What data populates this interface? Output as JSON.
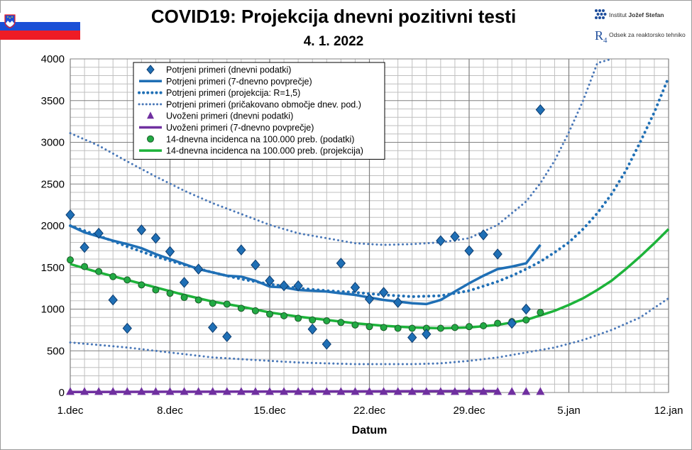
{
  "header": {
    "title": "COVID19: Projekcija dnevni pozitivni testi",
    "date": "4. 1. 2022",
    "institute_line1_a": "Institut ",
    "institute_line1_b": "Jožef Stefan",
    "institute_line2": "Odsek za reaktorsko tehniko",
    "institute_mark": "R",
    "institute_mark_sub": "4",
    "flag_icon": "slovenia-flag-icon",
    "logo_icon": "ijs-logo-icon"
  },
  "colors": {
    "blue_dark": "#1f6fb5",
    "blue_light": "#4a78b8",
    "purple": "#7030a0",
    "green": "#1db33a",
    "green_marker": "#22aa44",
    "grid": "#bfbfbf",
    "grid_major": "#808080"
  },
  "chart_data": {
    "type": "line",
    "title": "COVID19: Projekcija dnevni pozitivni testi",
    "subtitle": "4. 1. 2022",
    "xlabel": "Datum",
    "ylabel": "",
    "x_unit": "day index (0 = 1.dec)",
    "xlim": [
      0,
      42
    ],
    "ylim": [
      0,
      4000
    ],
    "yticks": [
      0,
      500,
      1000,
      1500,
      2000,
      2500,
      3000,
      3500,
      4000
    ],
    "xticks": [
      {
        "x": 0,
        "label": "1.dec"
      },
      {
        "x": 7,
        "label": "8.dec"
      },
      {
        "x": 14,
        "label": "15.dec"
      },
      {
        "x": 21,
        "label": "22.dec"
      },
      {
        "x": 28,
        "label": "29.dec"
      },
      {
        "x": 35,
        "label": "5.jan"
      },
      {
        "x": 42,
        "label": "12.jan"
      }
    ],
    "grid": true,
    "legend_position": "top-left",
    "series": [
      {
        "name": "Potrjeni primeri (dnevni podatki)",
        "style": "diamond",
        "x": [
          0,
          1,
          2,
          3,
          4,
          5,
          6,
          7,
          8,
          9,
          10,
          11,
          12,
          13,
          14,
          15,
          16,
          17,
          18,
          19,
          20,
          21,
          22,
          23,
          24,
          25,
          26,
          27,
          28,
          29,
          30,
          31,
          32,
          33
        ],
        "y": [
          2130,
          1740,
          1910,
          1110,
          770,
          1950,
          1850,
          1690,
          1320,
          1480,
          780,
          670,
          1710,
          1530,
          1340,
          1280,
          1280,
          760,
          580,
          1550,
          1260,
          1120,
          1200,
          1080,
          660,
          700,
          1820,
          1870,
          1700,
          1890,
          1660,
          830,
          1000,
          3390
        ]
      },
      {
        "name": "Potrjeni primeri (7-dnevno povprečje)",
        "style": "solid-blue",
        "x": [
          0,
          1,
          2,
          3,
          4,
          5,
          6,
          7,
          8,
          9,
          10,
          11,
          12,
          13,
          14,
          15,
          16,
          17,
          18,
          19,
          20,
          21,
          22,
          23,
          24,
          25,
          26,
          27,
          28,
          29,
          30,
          31,
          32,
          33
        ],
        "y": [
          2000,
          1920,
          1870,
          1820,
          1780,
          1730,
          1660,
          1600,
          1540,
          1480,
          1440,
          1400,
          1390,
          1340,
          1270,
          1260,
          1230,
          1220,
          1210,
          1190,
          1170,
          1140,
          1110,
          1090,
          1070,
          1060,
          1110,
          1210,
          1310,
          1400,
          1480,
          1510,
          1550,
          1770
        ]
      },
      {
        "name": "Potrjeni primeri (projekcija: R=1,5)",
        "style": "dotted-blue",
        "x": [
          0,
          2,
          4,
          6,
          8,
          10,
          12,
          14,
          16,
          18,
          20,
          22,
          24,
          26,
          28,
          30,
          31,
          32,
          33,
          34,
          35,
          36,
          37,
          38,
          39,
          40,
          41,
          42
        ],
        "y": [
          2000,
          1880,
          1750,
          1630,
          1530,
          1440,
          1360,
          1300,
          1250,
          1220,
          1200,
          1170,
          1150,
          1160,
          1220,
          1330,
          1400,
          1480,
          1570,
          1680,
          1800,
          1960,
          2150,
          2380,
          2660,
          3000,
          3360,
          3780
        ]
      },
      {
        "name": "Potrjeni primeri (pričakovano območje dnev. pod.)",
        "style": "dotted-light-blue",
        "upper": {
          "x": [
            0,
            2,
            4,
            6,
            8,
            10,
            12,
            14,
            16,
            18,
            20,
            22,
            24,
            26,
            28,
            30,
            32,
            33,
            34,
            35,
            36,
            37,
            38
          ],
          "y": [
            3110,
            2960,
            2770,
            2590,
            2420,
            2270,
            2140,
            2010,
            1910,
            1850,
            1790,
            1770,
            1780,
            1800,
            1850,
            2010,
            2290,
            2510,
            2780,
            3120,
            3500,
            3950,
            4000
          ]
        },
        "lower": {
          "x": [
            0,
            2,
            4,
            6,
            8,
            10,
            12,
            14,
            16,
            18,
            20,
            22,
            24,
            26,
            28,
            30,
            32,
            34,
            36,
            38,
            40,
            42
          ],
          "y": [
            600,
            570,
            540,
            500,
            460,
            420,
            400,
            380,
            360,
            350,
            340,
            340,
            340,
            350,
            380,
            420,
            480,
            540,
            630,
            750,
            900,
            1130
          ]
        }
      },
      {
        "name": "Uvoženi primeri (dnevni podatki)",
        "style": "triangle",
        "x": [
          0,
          1,
          2,
          3,
          4,
          5,
          6,
          7,
          8,
          9,
          10,
          11,
          12,
          13,
          14,
          15,
          16,
          17,
          18,
          19,
          20,
          21,
          22,
          23,
          24,
          25,
          26,
          27,
          28,
          29,
          30,
          31,
          32,
          33
        ],
        "y": [
          5,
          5,
          5,
          5,
          5,
          5,
          5,
          5,
          5,
          5,
          5,
          5,
          5,
          5,
          5,
          5,
          5,
          5,
          5,
          5,
          5,
          5,
          5,
          5,
          5,
          5,
          5,
          5,
          5,
          5,
          5,
          5,
          5,
          5
        ]
      },
      {
        "name": "Uvoženi primeri (7-dnevno povprečje)",
        "style": "solid-purple",
        "x": [
          0,
          30
        ],
        "y": [
          6,
          18
        ]
      },
      {
        "name": "14-dnevna incidenca na 100.000 preb. (podatki)",
        "style": "circle",
        "x": [
          0,
          1,
          2,
          3,
          4,
          5,
          6,
          7,
          8,
          9,
          10,
          11,
          12,
          13,
          14,
          15,
          16,
          17,
          18,
          19,
          20,
          21,
          22,
          23,
          24,
          25,
          26,
          27,
          28,
          29,
          30,
          31,
          32,
          33
        ],
        "y": [
          1590,
          1510,
          1450,
          1390,
          1350,
          1290,
          1230,
          1190,
          1140,
          1110,
          1070,
          1060,
          1010,
          980,
          940,
          920,
          890,
          870,
          860,
          840,
          810,
          790,
          780,
          770,
          770,
          770,
          770,
          780,
          790,
          800,
          830,
          850,
          870,
          960
        ]
      },
      {
        "name": "14-dnevna incidenca na 100.000 preb. (projekcija)",
        "style": "solid-green",
        "x": [
          0,
          2,
          4,
          6,
          8,
          10,
          12,
          14,
          16,
          18,
          20,
          22,
          24,
          26,
          28,
          30,
          32,
          34,
          35,
          36,
          37,
          38,
          39,
          40,
          41,
          42
        ],
        "y": [
          1540,
          1440,
          1350,
          1260,
          1170,
          1090,
          1030,
          960,
          910,
          870,
          830,
          800,
          780,
          770,
          780,
          810,
          870,
          980,
          1050,
          1130,
          1230,
          1340,
          1480,
          1630,
          1790,
          1960
        ]
      }
    ]
  }
}
